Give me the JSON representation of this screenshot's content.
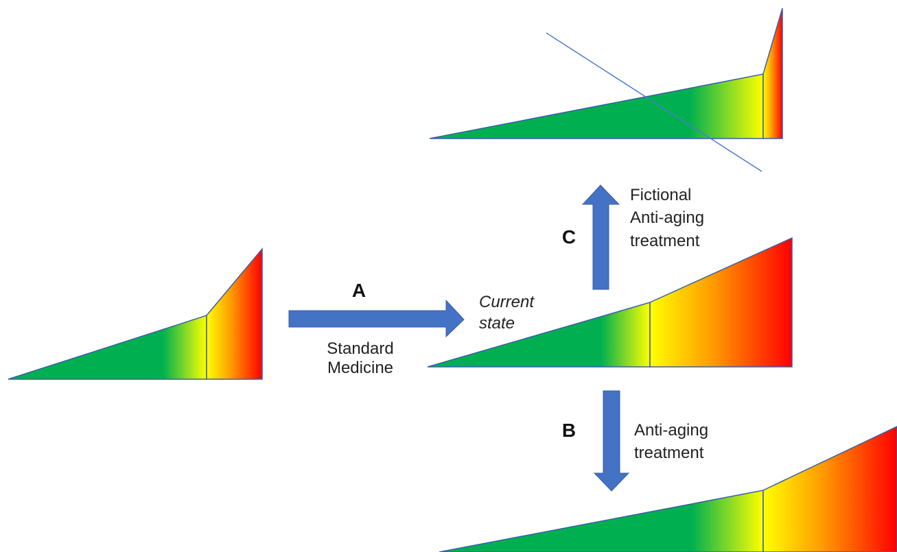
{
  "colors": {
    "green": "#00b050",
    "yellow": "#ffff00",
    "orange": "#ff9900",
    "red": "#ff0000",
    "arrow": "#4472c4",
    "outline": "#3a5da8",
    "strike": "#4a7bd0"
  },
  "arrow_a": {
    "letter": "A",
    "caption_line1": "Standard",
    "caption_line2": "Medicine"
  },
  "arrow_b": {
    "letter": "B",
    "caption_line1": "Anti-aging",
    "caption_line2": "treatment"
  },
  "arrow_c": {
    "letter": "C",
    "caption_line1": "Fictional",
    "caption_line2": "Anti-aging",
    "caption_line3": "treatment"
  },
  "current": {
    "line1": "Current",
    "line2": "state"
  }
}
